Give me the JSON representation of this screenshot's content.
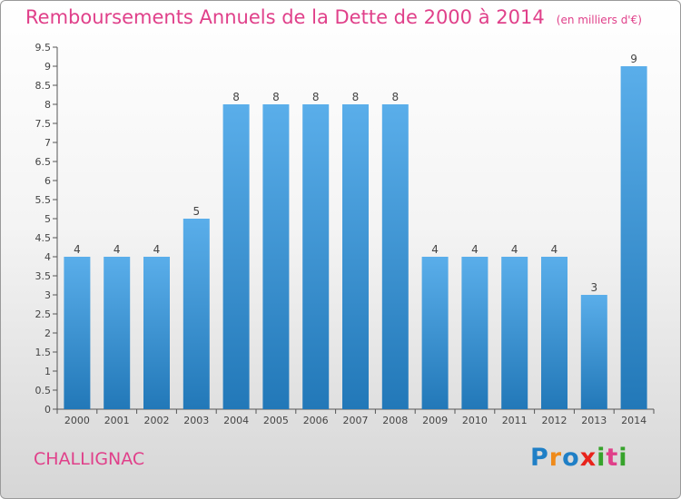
{
  "header": {
    "title": "Remboursements Annuels de la Dette de 2000 à 2014",
    "unit": "(en milliers d'€)"
  },
  "footer": {
    "commune": "CHALLIGNAC",
    "logo_letters": [
      {
        "ch": "P",
        "color": "#1f7fc6"
      },
      {
        "ch": "r",
        "color": "#ef8a1a"
      },
      {
        "ch": "o",
        "color": "#1f7fc6"
      },
      {
        "ch": "x",
        "color": "#e8231b"
      },
      {
        "ch": "i",
        "color": "#36a32b"
      },
      {
        "ch": "t",
        "color": "#e0408a"
      },
      {
        "ch": "i",
        "color": "#36a32b"
      }
    ]
  },
  "colors": {
    "bar_top": "#5aaeea",
    "bar_bottom": "#2278b8",
    "title": "#e0408a"
  },
  "chart_data": {
    "type": "bar",
    "categories": [
      "2000",
      "2001",
      "2002",
      "2003",
      "2004",
      "2005",
      "2006",
      "2007",
      "2008",
      "2009",
      "2010",
      "2011",
      "2012",
      "2013",
      "2014"
    ],
    "values": [
      4,
      4,
      4,
      5,
      8,
      8,
      8,
      8,
      8,
      4,
      4,
      4,
      4,
      3,
      9
    ],
    "data_labels": [
      "4",
      "4",
      "4",
      "5",
      "8",
      "8",
      "8",
      "8",
      "8",
      "4",
      "4",
      "4",
      "4",
      "3",
      "9"
    ],
    "ylim": [
      0,
      9.5
    ],
    "yticks": [
      0,
      0.5,
      1,
      1.5,
      2,
      2.5,
      3,
      3.5,
      4,
      4.5,
      5,
      5.5,
      6,
      6.5,
      7,
      7.5,
      8,
      8.5,
      9,
      9.5
    ],
    "ytick_labels": [
      "0",
      "0.5",
      "1",
      "1.5",
      "2",
      "2.5",
      "3",
      "3.5",
      "4",
      "4.5",
      "5",
      "5.5",
      "6",
      "6.5",
      "7",
      "7.5",
      "8",
      "8.5",
      "9",
      "9.5"
    ],
    "grid": false,
    "legend": "none"
  }
}
